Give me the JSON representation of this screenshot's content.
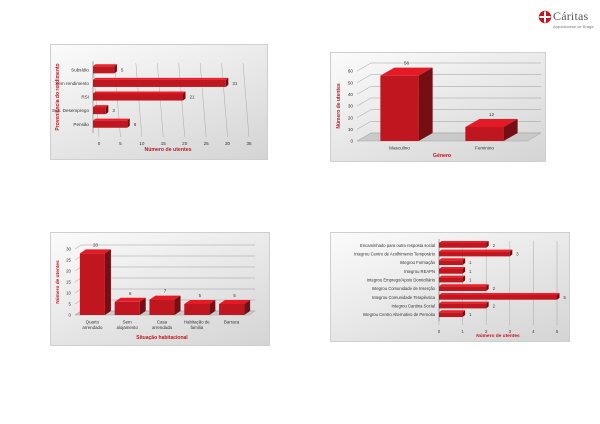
{
  "logo": {
    "name": "Cáritas",
    "tagline": "Arquidiocese de Braga"
  },
  "charts": [
    {
      "type": "bar-horizontal",
      "categories": [
        "Subsídio",
        "Sem rendimento",
        "RSI",
        "Sub. Desemprego",
        "Pensão"
      ],
      "values": [
        5,
        31,
        21,
        3,
        8
      ],
      "value_labels": [
        "5",
        "31",
        "21",
        "3",
        "8"
      ],
      "xticks": [
        "0",
        "5",
        "10",
        "15",
        "20",
        "25",
        "30",
        "35"
      ],
      "xmax": 35,
      "xlabel": "Número de utentes",
      "ylabel": "Proveniência do rendimento",
      "color": "#c0161f"
    },
    {
      "type": "bar-3d",
      "categories": [
        "Masculino",
        "Feminino"
      ],
      "values": [
        56,
        12
      ],
      "value_labels": [
        "56",
        "12"
      ],
      "yticks": [
        "0",
        "10",
        "20",
        "30",
        "40",
        "50",
        "60"
      ],
      "ymax": 60,
      "xlabel": "Género",
      "ylabel": "Número de utentes",
      "color": "#c0161f"
    },
    {
      "type": "bar-3d",
      "categories": [
        "Quarto arrendado",
        "Sem alojamento",
        "Casa arrendada",
        "Habitação de familia",
        "Barraca"
      ],
      "values": [
        28,
        6,
        7,
        5,
        5
      ],
      "value_labels": [
        "28",
        "6",
        "7",
        "5",
        "5"
      ],
      "yticks": [
        "0",
        "5",
        "10",
        "15",
        "20",
        "25",
        "30"
      ],
      "ymax": 30,
      "xlabel": "Situação habitacional",
      "ylabel": "Número de utentes",
      "color": "#c0161f"
    },
    {
      "type": "bar-horizontal",
      "categories": [
        "Encaminhado para outra resposta social",
        "Integrou Centro de Acolhimento Temporário",
        "Integrou Formação",
        "Integrou REAPN",
        "Integrou Emprego/Apoio Domiciliário",
        "Integrou Comunidade de Inserção",
        "Integrou Comunidade Terapêutica",
        "Integrou Cantina Social",
        "Integrou Centro Alternativo de Pernoita"
      ],
      "values": [
        2,
        3,
        1,
        1,
        1,
        2,
        5,
        2,
        1
      ],
      "value_labels": [
        "2",
        "3",
        "1",
        "1",
        "1",
        "2",
        "5",
        "2",
        "1"
      ],
      "xticks": [
        "0",
        "1",
        "2",
        "3",
        "4",
        "5"
      ],
      "xmax": 5,
      "xlabel": "Número de utentes",
      "ylabel": "",
      "color": "#c0161f"
    }
  ]
}
